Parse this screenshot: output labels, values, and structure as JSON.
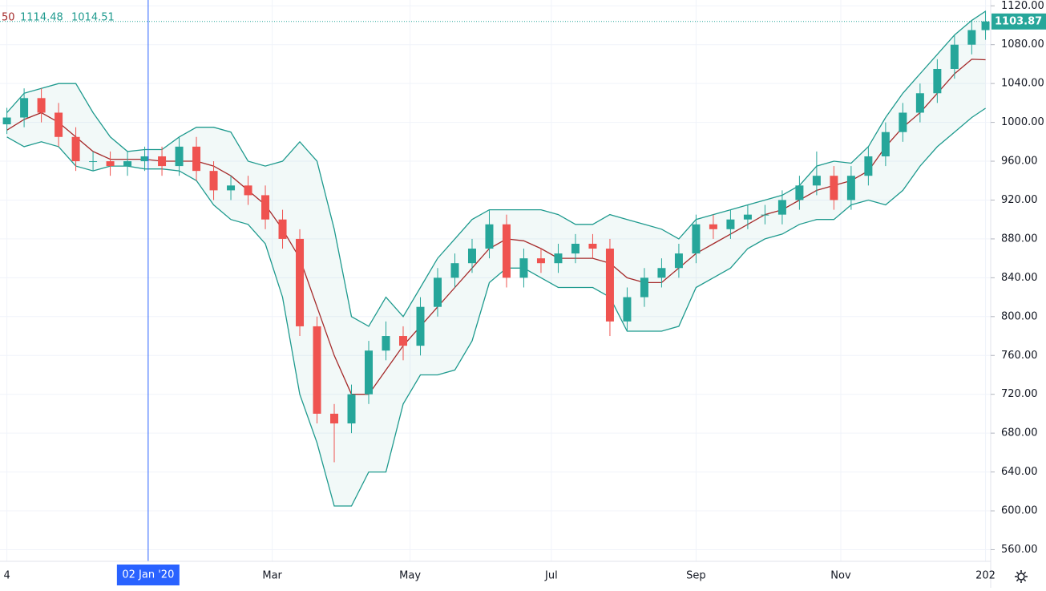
{
  "chart_data": {
    "type": "candlestick",
    "legend_fragment": "50",
    "last_price": 1103.87,
    "crosshair": {
      "x": 43,
      "label": "02 Jan '20"
    },
    "xlim": [
      0,
      287.5
    ],
    "ylim": [
      548,
      1126
    ],
    "grid": true,
    "up_color": "#26a69a",
    "down_color": "#ef5350",
    "band_color": "#1e9a8e",
    "band_fill": "rgba(30,154,142,0.06)",
    "x": [
      2,
      7,
      12,
      17,
      22,
      27,
      32,
      37,
      42,
      47,
      52,
      57,
      62,
      67,
      72,
      77,
      82,
      87,
      92,
      97,
      102,
      107,
      112,
      117,
      122,
      127,
      132,
      137,
      142,
      147,
      152,
      157,
      162,
      167,
      172,
      177,
      182,
      187,
      192,
      197,
      202,
      207,
      212,
      217,
      222,
      227,
      232,
      237,
      242,
      247,
      252,
      257,
      262,
      267,
      272,
      277,
      282,
      286
    ],
    "open": [
      998,
      1005,
      1025,
      1010,
      985,
      960,
      960,
      955,
      960,
      965,
      955,
      975,
      950,
      930,
      935,
      925,
      900,
      880,
      790,
      700,
      690,
      720,
      765,
      780,
      770,
      810,
      840,
      855,
      870,
      895,
      840,
      860,
      855,
      865,
      875,
      870,
      795,
      820,
      840,
      850,
      865,
      895,
      890,
      900,
      905,
      905,
      920,
      935,
      945,
      920,
      945,
      965,
      990,
      1010,
      1030,
      1055,
      1080,
      1095
    ],
    "high": [
      1015,
      1035,
      1035,
      1020,
      995,
      970,
      970,
      970,
      975,
      975,
      985,
      985,
      960,
      945,
      945,
      935,
      910,
      890,
      800,
      710,
      730,
      775,
      795,
      790,
      820,
      850,
      865,
      880,
      910,
      905,
      870,
      870,
      875,
      885,
      885,
      880,
      830,
      850,
      860,
      875,
      905,
      905,
      910,
      915,
      915,
      930,
      945,
      970,
      955,
      955,
      975,
      1000,
      1020,
      1040,
      1065,
      1090,
      1105,
      1115
    ],
    "low": [
      988,
      995,
      1000,
      975,
      950,
      950,
      945,
      945,
      950,
      945,
      945,
      940,
      920,
      920,
      915,
      890,
      870,
      780,
      690,
      650,
      680,
      710,
      755,
      755,
      760,
      800,
      830,
      845,
      860,
      830,
      830,
      845,
      845,
      855,
      860,
      780,
      785,
      810,
      830,
      840,
      855,
      880,
      880,
      890,
      895,
      895,
      910,
      925,
      910,
      910,
      935,
      955,
      980,
      1000,
      1020,
      1045,
      1070,
      1085
    ],
    "close": [
      1005,
      1025,
      1010,
      985,
      960,
      960,
      955,
      960,
      965,
      955,
      975,
      950,
      930,
      935,
      925,
      900,
      880,
      790,
      700,
      690,
      720,
      765,
      780,
      770,
      810,
      840,
      855,
      870,
      895,
      840,
      860,
      855,
      865,
      875,
      870,
      795,
      820,
      840,
      850,
      865,
      895,
      890,
      900,
      905,
      905,
      920,
      935,
      945,
      920,
      945,
      965,
      990,
      1010,
      1030,
      1055,
      1080,
      1095,
      1103.87
    ],
    "series": [
      {
        "name": "upper",
        "color": "#1e9a8e",
        "values": [
          1010,
          1030,
          1035,
          1040,
          1040,
          1010,
          985,
          970,
          972,
          972,
          985,
          995,
          995,
          990,
          960,
          955,
          960,
          980,
          960,
          890,
          800,
          790,
          820,
          800,
          830,
          860,
          880,
          900,
          910,
          910,
          910,
          910,
          905,
          895,
          895,
          905,
          900,
          895,
          890,
          880,
          900,
          905,
          910,
          915,
          920,
          925,
          935,
          955,
          960,
          958,
          975,
          1005,
          1030,
          1050,
          1070,
          1090,
          1105,
          1114.48
        ]
      },
      {
        "name": "basis",
        "color": "#a52a2a",
        "values": [
          992,
          1003,
          1010,
          1000,
          985,
          970,
          962,
          962,
          962,
          960,
          960,
          960,
          955,
          945,
          930,
          915,
          890,
          860,
          810,
          760,
          720,
          720,
          745,
          770,
          790,
          810,
          830,
          850,
          870,
          880,
          878,
          870,
          860,
          860,
          860,
          855,
          840,
          835,
          835,
          850,
          865,
          875,
          885,
          895,
          905,
          910,
          920,
          930,
          935,
          940,
          950,
          975,
          995,
          1010,
          1030,
          1050,
          1065,
          1064.5
        ]
      },
      {
        "name": "lower",
        "color": "#1e9a8e",
        "values": [
          985,
          975,
          980,
          975,
          955,
          950,
          955,
          955,
          952,
          952,
          950,
          940,
          915,
          900,
          895,
          875,
          820,
          720,
          670,
          605,
          605,
          640,
          640,
          710,
          740,
          740,
          745,
          775,
          835,
          850,
          850,
          840,
          830,
          830,
          830,
          820,
          785,
          785,
          785,
          790,
          830,
          840,
          850,
          870,
          880,
          885,
          895,
          900,
          900,
          915,
          920,
          915,
          930,
          955,
          975,
          990,
          1005,
          1014.51
        ]
      }
    ],
    "yticks": [
      {
        "value": 560,
        "label": "560.00"
      },
      {
        "value": 600,
        "label": "600.00"
      },
      {
        "value": 640,
        "label": "640.00"
      },
      {
        "value": 680,
        "label": "680.00"
      },
      {
        "value": 720,
        "label": "720.00"
      },
      {
        "value": 760,
        "label": "760.00"
      },
      {
        "value": 800,
        "label": "800.00"
      },
      {
        "value": 840,
        "label": "840.00"
      },
      {
        "value": 880,
        "label": "880.00"
      },
      {
        "value": 920,
        "label": "920.00"
      },
      {
        "value": 960,
        "label": "960.00"
      },
      {
        "value": 1000,
        "label": "1000.00"
      },
      {
        "value": 1040,
        "label": "1040.00"
      },
      {
        "value": 1080,
        "label": "1080.00"
      },
      {
        "value": 1120,
        "label": "1120.00"
      }
    ],
    "xticks": [
      {
        "value": 2,
        "label": "4"
      },
      {
        "value": 79,
        "label": "Mar"
      },
      {
        "value": 119,
        "label": "May"
      },
      {
        "value": 160,
        "label": "Jul"
      },
      {
        "value": 202,
        "label": "Sep"
      },
      {
        "value": 244,
        "label": "Nov"
      },
      {
        "value": 286,
        "label": "202"
      }
    ]
  }
}
